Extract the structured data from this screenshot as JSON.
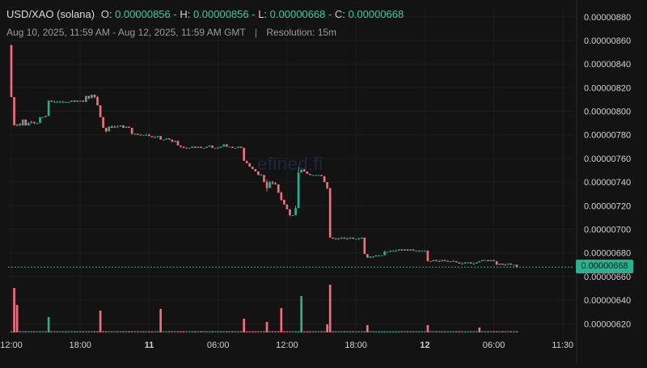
{
  "header": {
    "pair": "USD/XAO (solana)",
    "open_label": "O:",
    "open": "0.00000856",
    "high_label": "H:",
    "high": "0.00000856",
    "low_label": "L:",
    "low": "0.00000668",
    "close_label": "C:",
    "close": "0.00000668",
    "range": "Aug 10, 2025, 11:59 AM - Aug 12, 2025, 11:59 AM GMT",
    "separator": "|",
    "resolution": "Resolution: 15m"
  },
  "watermark": "efined.fi",
  "colors": {
    "background": "#131313",
    "up": "#2bb08f",
    "down": "#f26d7d",
    "grid": "#1d1d1d",
    "axis_text": "#d0d0d0",
    "last_price": "#2bb08f"
  },
  "chart_data": {
    "type": "candlestick",
    "last_price": "0.00000668",
    "y_ticks": [
      "0.00000880",
      "0.00000860",
      "0.00000840",
      "0.00000820",
      "0.00000800",
      "0.00000780",
      "0.00000760",
      "0.00000740",
      "0.00000720",
      "0.00000700",
      "0.00000680",
      "0.00000660",
      "0.00000640",
      "0.00000620"
    ],
    "ylim": [
      6.12e-06,
      8.86e-06
    ],
    "x_ticks": [
      {
        "label": "12:00",
        "t": 0
      },
      {
        "label": "18:00",
        "t": 24
      },
      {
        "label": "11",
        "t": 48,
        "bold": true
      },
      {
        "label": "06:00",
        "t": 72
      },
      {
        "label": "12:00",
        "t": 96
      },
      {
        "label": "18:00",
        "t": 120
      },
      {
        "label": "12",
        "t": 144,
        "bold": true
      },
      {
        "label": "06:00",
        "t": 168
      },
      {
        "label": "11:30",
        "t": 192
      }
    ],
    "grid": true,
    "candles": [
      [
        0,
        8.56,
        8.56,
        8.12,
        8.12
      ],
      [
        1,
        8.12,
        8.12,
        7.88,
        7.88
      ],
      [
        2,
        7.88,
        7.89,
        7.87,
        7.89
      ],
      [
        3,
        7.89,
        7.9,
        7.88,
        7.88
      ],
      [
        4,
        7.88,
        7.93,
        7.88,
        7.93
      ],
      [
        5,
        7.93,
        7.93,
        7.88,
        7.88
      ],
      [
        6,
        7.88,
        7.91,
        7.88,
        7.9
      ],
      [
        7,
        7.9,
        7.92,
        7.9,
        7.91
      ],
      [
        8,
        7.91,
        7.91,
        7.89,
        7.9
      ],
      [
        9,
        7.9,
        7.9,
        7.89,
        7.9
      ],
      [
        10,
        7.9,
        7.95,
        7.9,
        7.95
      ],
      [
        11,
        7.95,
        7.95,
        7.95,
        7.95
      ],
      [
        12,
        7.95,
        7.96,
        7.95,
        7.96
      ],
      [
        13,
        7.96,
        8.09,
        7.96,
        8.09
      ],
      [
        14,
        8.09,
        8.09,
        8.08,
        8.08
      ],
      [
        15,
        8.08,
        8.09,
        8.08,
        8.08
      ],
      [
        16,
        8.08,
        8.09,
        8.08,
        8.08
      ],
      [
        17,
        8.08,
        8.09,
        8.08,
        8.08
      ],
      [
        18,
        8.08,
        8.09,
        8.08,
        8.08
      ],
      [
        19,
        8.08,
        8.08,
        8.08,
        8.08
      ],
      [
        20,
        8.08,
        8.08,
        8.08,
        8.08
      ],
      [
        21,
        8.08,
        8.09,
        8.08,
        8.09
      ],
      [
        22,
        8.09,
        8.09,
        8.08,
        8.08
      ],
      [
        23,
        8.08,
        8.09,
        8.08,
        8.09
      ],
      [
        24,
        8.09,
        8.09,
        8.08,
        8.09
      ],
      [
        25,
        8.09,
        8.09,
        8.08,
        8.08
      ],
      [
        26,
        8.08,
        8.13,
        8.08,
        8.13
      ],
      [
        27,
        8.13,
        8.13,
        8.1,
        8.11
      ],
      [
        28,
        8.11,
        8.14,
        8.11,
        8.14
      ],
      [
        29,
        8.14,
        8.14,
        8.11,
        8.12
      ],
      [
        30,
        8.12,
        8.13,
        8.05,
        8.05
      ],
      [
        31,
        8.05,
        8.05,
        7.95,
        7.95
      ],
      [
        32,
        7.95,
        7.95,
        7.86,
        7.86
      ],
      [
        33,
        7.86,
        7.86,
        7.82,
        7.83
      ],
      [
        34,
        7.83,
        7.87,
        7.83,
        7.87
      ],
      [
        35,
        7.87,
        7.88,
        7.86,
        7.86
      ],
      [
        36,
        7.86,
        7.88,
        7.86,
        7.87
      ],
      [
        37,
        7.87,
        7.88,
        7.87,
        7.87
      ],
      [
        38,
        7.87,
        7.88,
        7.87,
        7.88
      ],
      [
        39,
        7.88,
        7.88,
        7.86,
        7.86
      ],
      [
        40,
        7.86,
        7.87,
        7.86,
        7.87
      ],
      [
        41,
        7.87,
        7.87,
        7.86,
        7.86
      ],
      [
        42,
        7.86,
        7.86,
        7.8,
        7.81
      ],
      [
        43,
        7.81,
        7.81,
        7.8,
        7.81
      ],
      [
        44,
        7.81,
        7.81,
        7.8,
        7.8
      ],
      [
        45,
        7.8,
        7.81,
        7.8,
        7.8
      ],
      [
        46,
        7.8,
        7.8,
        7.8,
        7.8
      ],
      [
        47,
        7.8,
        7.81,
        7.8,
        7.8
      ],
      [
        48,
        7.8,
        7.81,
        7.79,
        7.79
      ],
      [
        49,
        7.79,
        7.79,
        7.78,
        7.78
      ],
      [
        50,
        7.78,
        7.79,
        7.78,
        7.78
      ],
      [
        51,
        7.78,
        7.79,
        7.78,
        7.79
      ],
      [
        52,
        7.79,
        7.79,
        7.76,
        7.76
      ],
      [
        53,
        7.76,
        7.76,
        7.76,
        7.76
      ],
      [
        54,
        7.76,
        7.77,
        7.76,
        7.77
      ],
      [
        55,
        7.77,
        7.77,
        7.76,
        7.76
      ],
      [
        56,
        7.76,
        7.76,
        7.74,
        7.74
      ],
      [
        57,
        7.74,
        7.75,
        7.74,
        7.75
      ],
      [
        58,
        7.75,
        7.75,
        7.71,
        7.71
      ],
      [
        59,
        7.71,
        7.71,
        7.69,
        7.7
      ],
      [
        60,
        7.7,
        7.7,
        7.69,
        7.69
      ],
      [
        61,
        7.69,
        7.7,
        7.69,
        7.69
      ],
      [
        62,
        7.69,
        7.69,
        7.69,
        7.69
      ],
      [
        63,
        7.69,
        7.7,
        7.69,
        7.7
      ],
      [
        64,
        7.7,
        7.7,
        7.69,
        7.69
      ],
      [
        65,
        7.69,
        7.7,
        7.69,
        7.7
      ],
      [
        66,
        7.7,
        7.7,
        7.69,
        7.69
      ],
      [
        67,
        7.69,
        7.69,
        7.69,
        7.69
      ],
      [
        68,
        7.69,
        7.7,
        7.69,
        7.7
      ],
      [
        69,
        7.7,
        7.71,
        7.7,
        7.71
      ],
      [
        70,
        7.71,
        7.71,
        7.69,
        7.69
      ],
      [
        71,
        7.69,
        7.69,
        7.69,
        7.69
      ],
      [
        72,
        7.69,
        7.7,
        7.69,
        7.69
      ],
      [
        73,
        7.69,
        7.7,
        7.69,
        7.7
      ],
      [
        74,
        7.7,
        7.72,
        7.7,
        7.72
      ],
      [
        75,
        7.72,
        7.72,
        7.7,
        7.7
      ],
      [
        76,
        7.7,
        7.7,
        7.7,
        7.7
      ],
      [
        77,
        7.7,
        7.7,
        7.69,
        7.69
      ],
      [
        78,
        7.69,
        7.69,
        7.69,
        7.69
      ],
      [
        79,
        7.69,
        7.7,
        7.69,
        7.7
      ],
      [
        80,
        7.7,
        7.7,
        7.69,
        7.69
      ],
      [
        81,
        7.69,
        7.69,
        7.58,
        7.58
      ],
      [
        82,
        7.58,
        7.58,
        7.56,
        7.56
      ],
      [
        83,
        7.56,
        7.56,
        7.53,
        7.53
      ],
      [
        84,
        7.53,
        7.53,
        7.51,
        7.51
      ],
      [
        85,
        7.51,
        7.51,
        7.49,
        7.49
      ],
      [
        86,
        7.49,
        7.49,
        7.46,
        7.46
      ],
      [
        87,
        7.46,
        7.47,
        7.46,
        7.46
      ],
      [
        88,
        7.46,
        7.46,
        7.4,
        7.4
      ],
      [
        89,
        7.4,
        7.42,
        7.32,
        7.35
      ],
      [
        90,
        7.35,
        7.41,
        7.35,
        7.4
      ],
      [
        91,
        7.4,
        7.41,
        7.38,
        7.39
      ],
      [
        92,
        7.39,
        7.4,
        7.38,
        7.38
      ],
      [
        93,
        7.38,
        7.38,
        7.31,
        7.31
      ],
      [
        94,
        7.31,
        7.32,
        7.24,
        7.25
      ],
      [
        95,
        7.25,
        7.25,
        7.21,
        7.21
      ],
      [
        96,
        7.21,
        7.21,
        7.17,
        7.17
      ],
      [
        97,
        7.17,
        7.17,
        7.11,
        7.12
      ],
      [
        98,
        7.12,
        7.12,
        7.12,
        7.12
      ],
      [
        99,
        7.12,
        7.2,
        7.12,
        7.18
      ],
      [
        100,
        7.18,
        7.53,
        7.18,
        7.48
      ],
      [
        101,
        7.48,
        7.52,
        7.48,
        7.51
      ],
      [
        102,
        7.51,
        7.51,
        7.49,
        7.49
      ],
      [
        103,
        7.49,
        7.49,
        7.47,
        7.47
      ],
      [
        104,
        7.47,
        7.47,
        7.46,
        7.46
      ],
      [
        105,
        7.46,
        7.46,
        7.46,
        7.46
      ],
      [
        106,
        7.46,
        7.46,
        7.46,
        7.46
      ],
      [
        107,
        7.46,
        7.46,
        7.46,
        7.46
      ],
      [
        108,
        7.46,
        7.46,
        7.45,
        7.45
      ],
      [
        109,
        7.45,
        7.45,
        7.4,
        7.4
      ],
      [
        110,
        7.4,
        7.4,
        7.34,
        7.35
      ],
      [
        111,
        7.35,
        7.35,
        6.93,
        6.93
      ],
      [
        112,
        6.93,
        6.93,
        6.92,
        6.92
      ],
      [
        113,
        6.92,
        6.93,
        6.92,
        6.92
      ],
      [
        114,
        6.92,
        6.93,
        6.92,
        6.92
      ],
      [
        115,
        6.92,
        6.93,
        6.92,
        6.93
      ],
      [
        116,
        6.93,
        6.93,
        6.92,
        6.92
      ],
      [
        117,
        6.92,
        6.93,
        6.92,
        6.92
      ],
      [
        118,
        6.92,
        6.93,
        6.92,
        6.93
      ],
      [
        119,
        6.93,
        6.93,
        6.92,
        6.92
      ],
      [
        120,
        6.92,
        6.92,
        6.92,
        6.92
      ],
      [
        121,
        6.92,
        6.93,
        6.92,
        6.92
      ],
      [
        122,
        6.92,
        6.93,
        6.92,
        6.93
      ],
      [
        123,
        6.93,
        6.93,
        6.79,
        6.79
      ],
      [
        124,
        6.79,
        6.79,
        6.76,
        6.76
      ],
      [
        125,
        6.76,
        6.77,
        6.76,
        6.77
      ],
      [
        126,
        6.77,
        6.77,
        6.76,
        6.77
      ],
      [
        127,
        6.77,
        6.78,
        6.77,
        6.78
      ],
      [
        128,
        6.78,
        6.78,
        6.77,
        6.78
      ],
      [
        129,
        6.78,
        6.78,
        6.78,
        6.78
      ],
      [
        130,
        6.78,
        6.82,
        6.78,
        6.81
      ],
      [
        131,
        6.81,
        6.81,
        6.81,
        6.81
      ],
      [
        132,
        6.81,
        6.82,
        6.81,
        6.82
      ],
      [
        133,
        6.82,
        6.82,
        6.81,
        6.82
      ],
      [
        134,
        6.82,
        6.83,
        6.82,
        6.82
      ],
      [
        135,
        6.82,
        6.83,
        6.82,
        6.83
      ],
      [
        136,
        6.83,
        6.83,
        6.82,
        6.82
      ],
      [
        137,
        6.82,
        6.83,
        6.82,
        6.83
      ],
      [
        138,
        6.83,
        6.83,
        6.82,
        6.82
      ],
      [
        139,
        6.82,
        6.83,
        6.82,
        6.83
      ],
      [
        140,
        6.83,
        6.83,
        6.82,
        6.82
      ],
      [
        141,
        6.82,
        6.82,
        6.82,
        6.82
      ],
      [
        142,
        6.82,
        6.82,
        6.81,
        6.82
      ],
      [
        143,
        6.82,
        6.82,
        6.82,
        6.82
      ],
      [
        144,
        6.82,
        6.82,
        6.82,
        6.82
      ],
      [
        145,
        6.82,
        6.82,
        6.73,
        6.73
      ],
      [
        146,
        6.73,
        6.73,
        6.73,
        6.73
      ],
      [
        147,
        6.73,
        6.74,
        6.73,
        6.74
      ],
      [
        148,
        6.74,
        6.74,
        6.73,
        6.73
      ],
      [
        149,
        6.73,
        6.74,
        6.73,
        6.73
      ],
      [
        150,
        6.73,
        6.74,
        6.73,
        6.74
      ],
      [
        151,
        6.74,
        6.74,
        6.73,
        6.73
      ],
      [
        152,
        6.73,
        6.74,
        6.73,
        6.73
      ],
      [
        153,
        6.73,
        6.73,
        6.73,
        6.73
      ],
      [
        154,
        6.73,
        6.74,
        6.73,
        6.73
      ],
      [
        155,
        6.73,
        6.73,
        6.72,
        6.72
      ],
      [
        156,
        6.72,
        6.72,
        6.71,
        6.71
      ],
      [
        157,
        6.71,
        6.72,
        6.71,
        6.71
      ],
      [
        158,
        6.71,
        6.72,
        6.71,
        6.72
      ],
      [
        159,
        6.72,
        6.72,
        6.71,
        6.72
      ],
      [
        160,
        6.72,
        6.72,
        6.71,
        6.71
      ],
      [
        161,
        6.71,
        6.72,
        6.71,
        6.71
      ],
      [
        162,
        6.71,
        6.72,
        6.71,
        6.72
      ],
      [
        163,
        6.72,
        6.73,
        6.72,
        6.73
      ],
      [
        164,
        6.73,
        6.74,
        6.73,
        6.74
      ],
      [
        165,
        6.74,
        6.74,
        6.74,
        6.74
      ],
      [
        166,
        6.74,
        6.74,
        6.73,
        6.73
      ],
      [
        167,
        6.73,
        6.74,
        6.73,
        6.74
      ],
      [
        168,
        6.74,
        6.74,
        6.73,
        6.73
      ],
      [
        169,
        6.73,
        6.73,
        6.7,
        6.7
      ],
      [
        170,
        6.7,
        6.71,
        6.7,
        6.71
      ],
      [
        171,
        6.71,
        6.71,
        6.7,
        6.7
      ],
      [
        172,
        6.7,
        6.71,
        6.7,
        6.7
      ],
      [
        173,
        6.7,
        6.71,
        6.7,
        6.71
      ],
      [
        174,
        6.71,
        6.71,
        6.7,
        6.7
      ],
      [
        175,
        6.7,
        6.7,
        6.7,
        6.7
      ],
      [
        176,
        6.7,
        6.7,
        6.68,
        6.68
      ]
    ],
    "volume_spikes": [
      {
        "t": 1,
        "v": 55,
        "dir": "down"
      },
      {
        "t": 2,
        "v": 34,
        "dir": "down"
      },
      {
        "t": 13,
        "v": 19,
        "dir": "up"
      },
      {
        "t": 31,
        "v": 27,
        "dir": "down"
      },
      {
        "t": 52,
        "v": 29,
        "dir": "down"
      },
      {
        "t": 81,
        "v": 17,
        "dir": "down"
      },
      {
        "t": 89,
        "v": 13,
        "dir": "down"
      },
      {
        "t": 94,
        "v": 30,
        "dir": "down"
      },
      {
        "t": 101,
        "v": 45,
        "dir": "up"
      },
      {
        "t": 111,
        "v": 59,
        "dir": "down"
      },
      {
        "t": 110,
        "v": 10,
        "dir": "down"
      },
      {
        "t": 124,
        "v": 9,
        "dir": "down"
      },
      {
        "t": 145,
        "v": 9,
        "dir": "down"
      },
      {
        "t": 163,
        "v": 6,
        "dir": "down"
      }
    ]
  }
}
